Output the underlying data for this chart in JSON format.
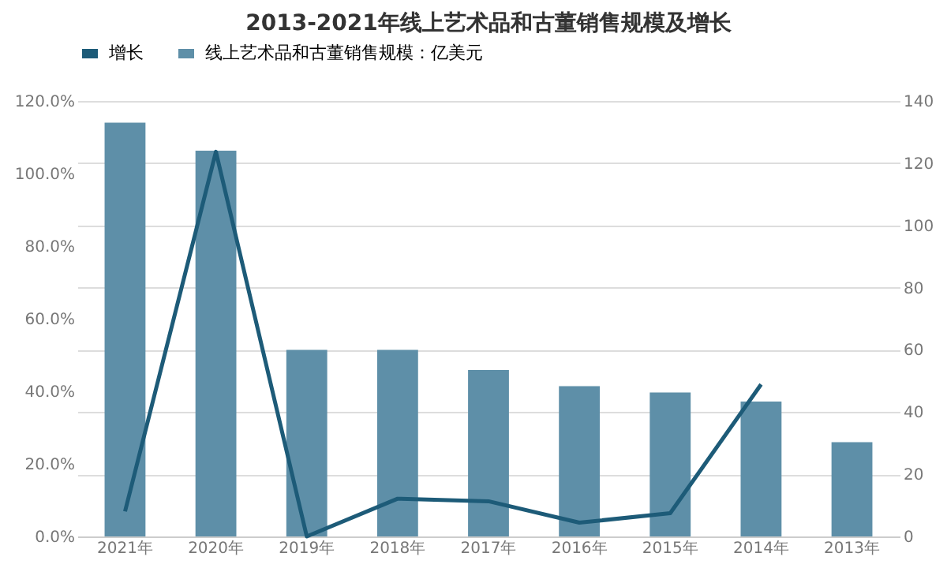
{
  "chart_data": {
    "type": "bar",
    "title": "2013-2021年线上艺术品和古董销售规模及增长",
    "categories": [
      "2021年",
      "2020年",
      "2019年",
      "2018年",
      "2017年",
      "2016年",
      "2015年",
      "2014年",
      "2013年"
    ],
    "series": [
      {
        "name": "增长",
        "type": "line",
        "color": "#1d5b78",
        "values": [
          6.9,
          106,
          0,
          10.4,
          9.7,
          3.8,
          6.4,
          41.9,
          null
        ]
      },
      {
        "name": "线上艺术品和古董销售规模：亿美元",
        "axis": "y2",
        "color": "#5e8fa8",
        "values": [
          133,
          124,
          60,
          60,
          53.5,
          48.3,
          46.3,
          43.4,
          30.3
        ]
      }
    ],
    "ylim": [
      0,
      120
    ],
    "yticks": [
      {
        "value": 0,
        "label": "0.0%"
      },
      {
        "value": 20,
        "label": "20.0%"
      },
      {
        "value": 40,
        "label": "40.0%"
      },
      {
        "value": 60,
        "label": "60.0%"
      },
      {
        "value": 80,
        "label": "80.0%"
      },
      {
        "value": 100,
        "label": "100.0%"
      },
      {
        "value": 120,
        "label": "120.0%"
      }
    ],
    "y2lim": [
      0,
      140
    ],
    "y2ticks": [
      0,
      20,
      40,
      60,
      80,
      100,
      120,
      140
    ],
    "grid": "y",
    "legend": "top"
  }
}
